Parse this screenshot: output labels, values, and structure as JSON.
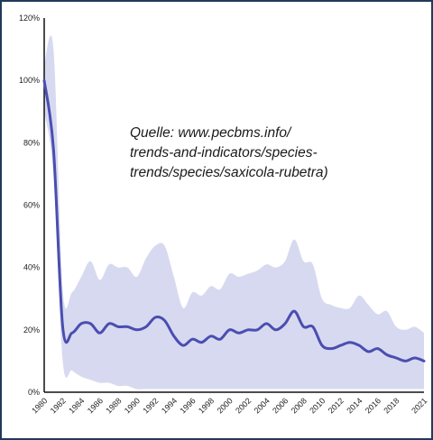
{
  "chart_data": {
    "type": "area",
    "annotation": [
      "Quelle: www.pecbms.info/",
      "trends-and-indicators/species-",
      "trends/species/saxicola-rubetra)"
    ],
    "ylim": [
      0,
      120
    ],
    "xlim": [
      1980,
      2021
    ],
    "y_tick_labels": [
      "0%",
      "20%",
      "40%",
      "60%",
      "80%",
      "100%",
      "120%"
    ],
    "x_tick_labels": [
      "1980",
      "1982",
      "1984",
      "1986",
      "1988",
      "1990",
      "1992",
      "1994",
      "1996",
      "1998",
      "2000",
      "2002",
      "2004",
      "2006",
      "2008",
      "2010",
      "2012",
      "2014",
      "2016",
      "2018",
      "2021"
    ],
    "colors": {
      "line": "#4a4eb0",
      "band": "#d7d9f0",
      "axis": "#111111",
      "frame": "#22395a"
    },
    "series": [
      {
        "x": [
          1980,
          1981,
          1982,
          1983,
          1984,
          1985,
          1986,
          1987,
          1988,
          1989,
          1990,
          1991,
          1992,
          1993,
          1994,
          1995,
          1996,
          1997,
          1998,
          1999,
          2000,
          2001,
          2002,
          2003,
          2004,
          2005,
          2006,
          2007,
          2008,
          2009,
          2010,
          2011,
          2012,
          2013,
          2014,
          2015,
          2016,
          2017,
          2018,
          2019,
          2020,
          2021
        ],
        "y": [
          100,
          78,
          21,
          19,
          22,
          22,
          19,
          22,
          21,
          21,
          20,
          21,
          24,
          23,
          18,
          15,
          17,
          16,
          18,
          17,
          20,
          19,
          20,
          20,
          22,
          20,
          22,
          26,
          21,
          21,
          15,
          14,
          15,
          16,
          15,
          13,
          14,
          12,
          11,
          10,
          11,
          10
        ],
        "lower": [
          90,
          70,
          10,
          7,
          5,
          4,
          3,
          3,
          2,
          2,
          1,
          1,
          1,
          1,
          1,
          1,
          1,
          1,
          1,
          1,
          1,
          1,
          1,
          1,
          1,
          1,
          1,
          1,
          1,
          1,
          1,
          1,
          1,
          1,
          1,
          1,
          1,
          1,
          1,
          1,
          1,
          1
        ],
        "upper": [
          105,
          110,
          33,
          32,
          37,
          42,
          36,
          41,
          40,
          40,
          37,
          43,
          47,
          47,
          37,
          27,
          32,
          31,
          34,
          33,
          38,
          37,
          38,
          39,
          41,
          40,
          42,
          49,
          42,
          41,
          30,
          28,
          27,
          27,
          31,
          28,
          25,
          26,
          21,
          20,
          21,
          19
        ]
      }
    ]
  }
}
